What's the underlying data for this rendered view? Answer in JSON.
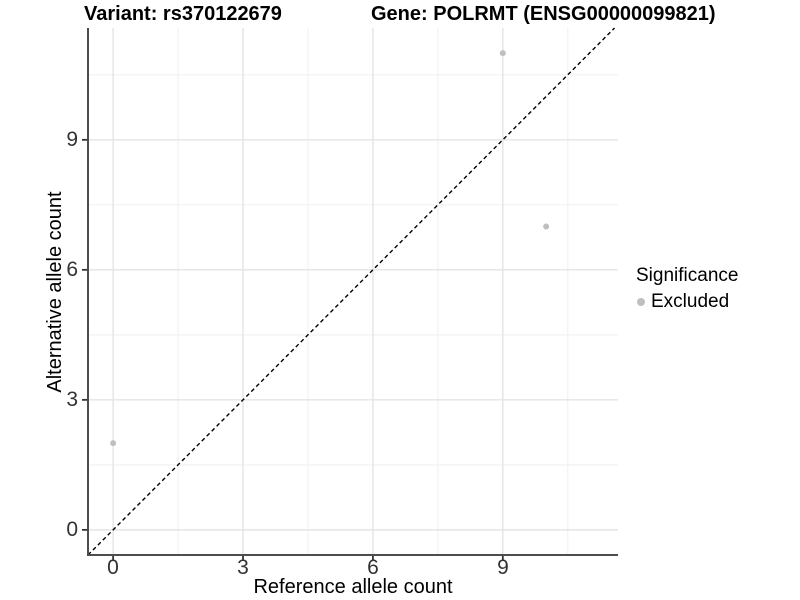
{
  "title": {
    "left": "Variant: rs370122679",
    "right": "Gene: POLRMT (ENSG00000099821)"
  },
  "chart_data": {
    "type": "scatter",
    "title": "Variant: rs370122679   Gene: POLRMT (ENSG00000099821)",
    "xlabel": "Reference allele count",
    "ylabel": "Alternative allele count",
    "x_ticks": [
      0,
      3,
      6,
      9
    ],
    "y_ticks": [
      0,
      3,
      6,
      9
    ],
    "xlim": [
      -0.58,
      11.66
    ],
    "ylim": [
      -0.58,
      11.58
    ],
    "grid": {
      "major": true,
      "minor": true
    },
    "identity_line": {
      "equation": "y = x",
      "style": "dashed",
      "color": "#000000"
    },
    "series": [
      {
        "name": "Excluded",
        "color": "#bfbfbf",
        "points": [
          {
            "x": 0,
            "y": 2
          },
          {
            "x": 9,
            "y": 11
          },
          {
            "x": 10,
            "y": 7
          }
        ]
      }
    ],
    "legend": {
      "title": "Significance",
      "position": "right",
      "entries": [
        {
          "label": "Excluded",
          "color": "#bfbfbf"
        }
      ]
    }
  },
  "colors": {
    "background": "#ffffff",
    "grid_major": "#e4e4e4",
    "grid_minor": "#f2f2f2",
    "axis_line": "#4d4d4d",
    "tick_mark": "#333333",
    "tick_text": "#333333",
    "point": "#bfbfbf",
    "identity_line": "#000000"
  }
}
